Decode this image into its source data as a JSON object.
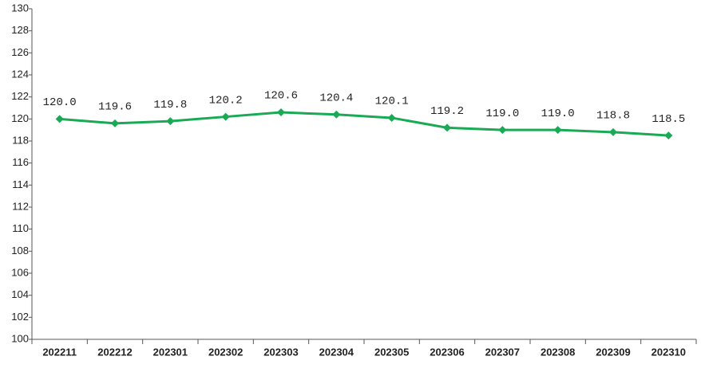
{
  "chart_data": {
    "type": "line",
    "categories": [
      "202211",
      "202212",
      "202301",
      "202302",
      "202303",
      "202304",
      "202305",
      "202306",
      "202307",
      "202308",
      "202309",
      "202310"
    ],
    "values": [
      120.0,
      119.6,
      119.8,
      120.2,
      120.6,
      120.4,
      120.1,
      119.2,
      119.0,
      119.0,
      118.8,
      118.5
    ],
    "value_labels": [
      "120.0",
      "119.6",
      "119.8",
      "120.2",
      "120.6",
      "120.4",
      "120.1",
      "119.2",
      "119.0",
      "119.0",
      "118.8",
      "118.5"
    ],
    "color": "#1aaa55",
    "ylim": [
      100,
      130
    ],
    "yticks": [
      100,
      102,
      104,
      106,
      108,
      110,
      112,
      114,
      116,
      118,
      120,
      122,
      124,
      126,
      128,
      130
    ],
    "grid": false
  }
}
